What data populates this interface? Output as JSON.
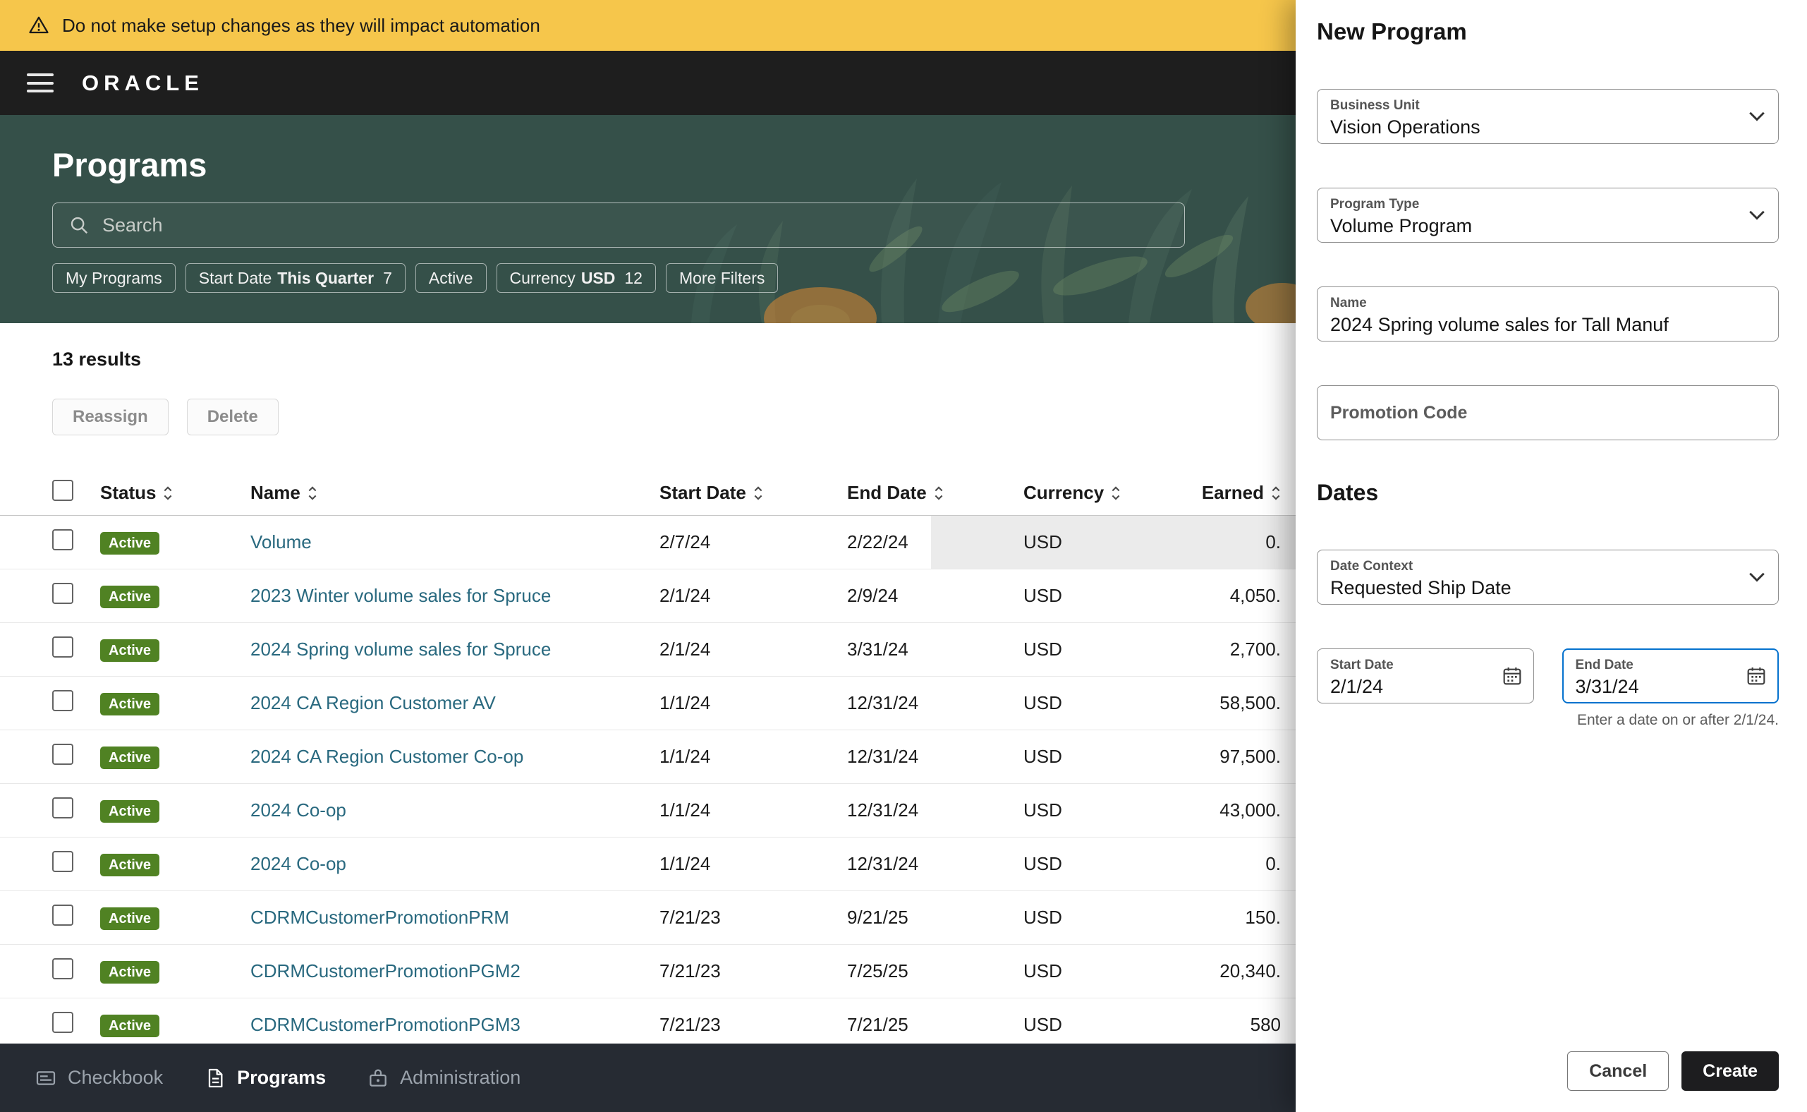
{
  "colors": {
    "accent_blue": "#0572CE",
    "badge_green": "#508223",
    "warning_yellow": "#F6C64B",
    "link_blue": "#29697F",
    "hero_green": "#355049",
    "header_dark": "#1E1E1E",
    "nav_dark": "#262B33",
    "create_button_dark": "#1D1D1F"
  },
  "banner": {
    "text": "Do not make setup changes as they will impact automation"
  },
  "header": {
    "logo": "ORACLE"
  },
  "hero": {
    "title": "Programs",
    "search_placeholder": "Search"
  },
  "filters": {
    "chips": [
      {
        "text": "My Programs"
      },
      {
        "text": "Start Date",
        "strong": "This Quarter",
        "count": "7"
      },
      {
        "text": "Active"
      },
      {
        "text": "Currency",
        "strong": "USD",
        "count": "12"
      },
      {
        "text": "More Filters"
      }
    ]
  },
  "results": {
    "count_text": "13 results"
  },
  "actions": {
    "reassign": "Reassign",
    "delete": "Delete"
  },
  "table": {
    "columns": [
      "Status",
      "Name",
      "Start Date",
      "End Date",
      "Currency",
      "Earned"
    ],
    "rows": [
      {
        "status": "Active",
        "name": "Volume",
        "start": "2/7/24",
        "end": "2/22/24",
        "currency": "USD",
        "earned": "0."
      },
      {
        "status": "Active",
        "name": "2023 Winter volume sales for Spruce",
        "start": "2/1/24",
        "end": "2/9/24",
        "currency": "USD",
        "earned": "4,050."
      },
      {
        "status": "Active",
        "name": "2024 Spring volume sales for Spruce",
        "start": "2/1/24",
        "end": "3/31/24",
        "currency": "USD",
        "earned": "2,700."
      },
      {
        "status": "Active",
        "name": "2024 CA Region Customer AV",
        "start": "1/1/24",
        "end": "12/31/24",
        "currency": "USD",
        "earned": "58,500."
      },
      {
        "status": "Active",
        "name": "2024 CA Region Customer Co-op",
        "start": "1/1/24",
        "end": "12/31/24",
        "currency": "USD",
        "earned": "97,500."
      },
      {
        "status": "Active",
        "name": "2024 Co-op",
        "start": "1/1/24",
        "end": "12/31/24",
        "currency": "USD",
        "earned": "43,000."
      },
      {
        "status": "Active",
        "name": "2024 Co-op",
        "start": "1/1/24",
        "end": "12/31/24",
        "currency": "USD",
        "earned": "0."
      },
      {
        "status": "Active",
        "name": "CDRMCustomerPromotionPRM",
        "start": "7/21/23",
        "end": "9/21/25",
        "currency": "USD",
        "earned": "150."
      },
      {
        "status": "Active",
        "name": "CDRMCustomerPromotionPGM2",
        "start": "7/21/23",
        "end": "7/25/25",
        "currency": "USD",
        "earned": "20,340."
      },
      {
        "status": "Active",
        "name": "CDRMCustomerPromotionPGM3",
        "start": "7/21/23",
        "end": "7/21/25",
        "currency": "USD",
        "earned": "580"
      }
    ]
  },
  "bottom_nav": {
    "items": [
      {
        "label": "Checkbook",
        "active": false
      },
      {
        "label": "Programs",
        "active": true
      },
      {
        "label": "Administration",
        "active": false
      }
    ]
  },
  "panel": {
    "title": "New Program",
    "business_unit": {
      "label": "Business Unit",
      "value": "Vision Operations"
    },
    "program_type": {
      "label": "Program Type",
      "value": "Volume Program"
    },
    "name": {
      "label": "Name",
      "value": "2024 Spring volume sales for Tall Manuf"
    },
    "promotion_code": {
      "placeholder": "Promotion Code"
    },
    "section_dates": "Dates",
    "date_context": {
      "label": "Date Context",
      "value": "Requested Ship Date"
    },
    "start_date": {
      "label": "Start Date",
      "value": "2/1/24"
    },
    "end_date": {
      "label": "End Date",
      "value": "3/31/24",
      "helper": "Enter a date on or after 2/1/24."
    },
    "buttons": {
      "cancel": "Cancel",
      "create": "Create"
    }
  }
}
